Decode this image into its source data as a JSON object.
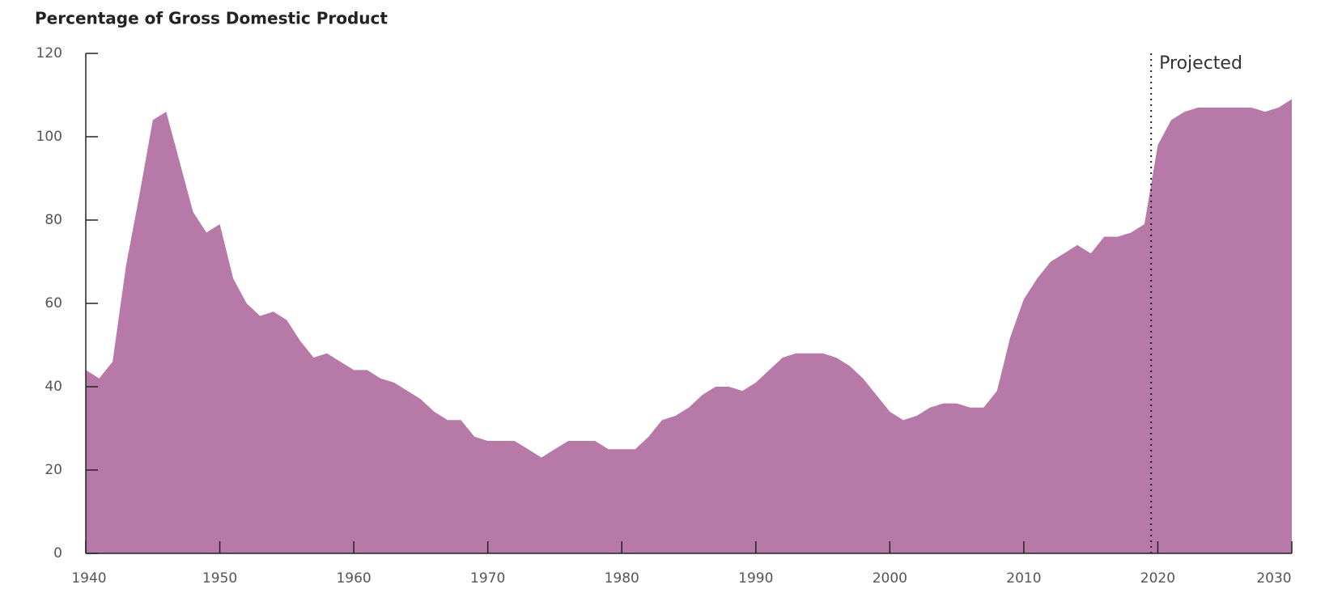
{
  "chart_data": {
    "type": "area",
    "title": "Percentage of Gross Domestic Product",
    "x": [
      1940,
      1941,
      1942,
      1943,
      1944,
      1945,
      1946,
      1947,
      1948,
      1949,
      1950,
      1951,
      1952,
      1953,
      1954,
      1955,
      1956,
      1957,
      1958,
      1959,
      1960,
      1961,
      1962,
      1963,
      1964,
      1965,
      1966,
      1967,
      1968,
      1969,
      1970,
      1971,
      1972,
      1973,
      1974,
      1975,
      1976,
      1977,
      1978,
      1979,
      1980,
      1981,
      1982,
      1983,
      1984,
      1985,
      1986,
      1987,
      1988,
      1989,
      1990,
      1991,
      1992,
      1993,
      1994,
      1995,
      1996,
      1997,
      1998,
      1999,
      2000,
      2001,
      2002,
      2003,
      2004,
      2005,
      2006,
      2007,
      2008,
      2009,
      2010,
      2011,
      2012,
      2013,
      2014,
      2015,
      2016,
      2017,
      2018,
      2019,
      2020,
      2021,
      2022,
      2023,
      2024,
      2025,
      2026,
      2027,
      2028,
      2029,
      2030
    ],
    "values": [
      44,
      42,
      46,
      69,
      86,
      104,
      106,
      94,
      82,
      77,
      79,
      66,
      60,
      57,
      58,
      56,
      51,
      47,
      48,
      46,
      44,
      44,
      42,
      41,
      39,
      37,
      34,
      32,
      32,
      28,
      27,
      27,
      27,
      25,
      23,
      25,
      27,
      27,
      27,
      25,
      25,
      25,
      28,
      32,
      33,
      35,
      38,
      40,
      40,
      39,
      41,
      44,
      47,
      48,
      48,
      48,
      47,
      45,
      42,
      38,
      34,
      32,
      33,
      35,
      36,
      36,
      35,
      35,
      39,
      52,
      61,
      66,
      70,
      72,
      74,
      72,
      76,
      76,
      77,
      79,
      98,
      104,
      106,
      107,
      107,
      107,
      107,
      107,
      106,
      107,
      109
    ],
    "color": "#b779a8",
    "xlim": [
      1940,
      2030
    ],
    "xticks": [
      1940,
      1950,
      1960,
      1970,
      1980,
      1990,
      2000,
      2010,
      2020,
      2030
    ],
    "ylim": [
      0,
      120
    ],
    "yticks": [
      0,
      20,
      40,
      60,
      80,
      100,
      120
    ],
    "projection_start": 2019.5,
    "projection_label": "Projected"
  }
}
